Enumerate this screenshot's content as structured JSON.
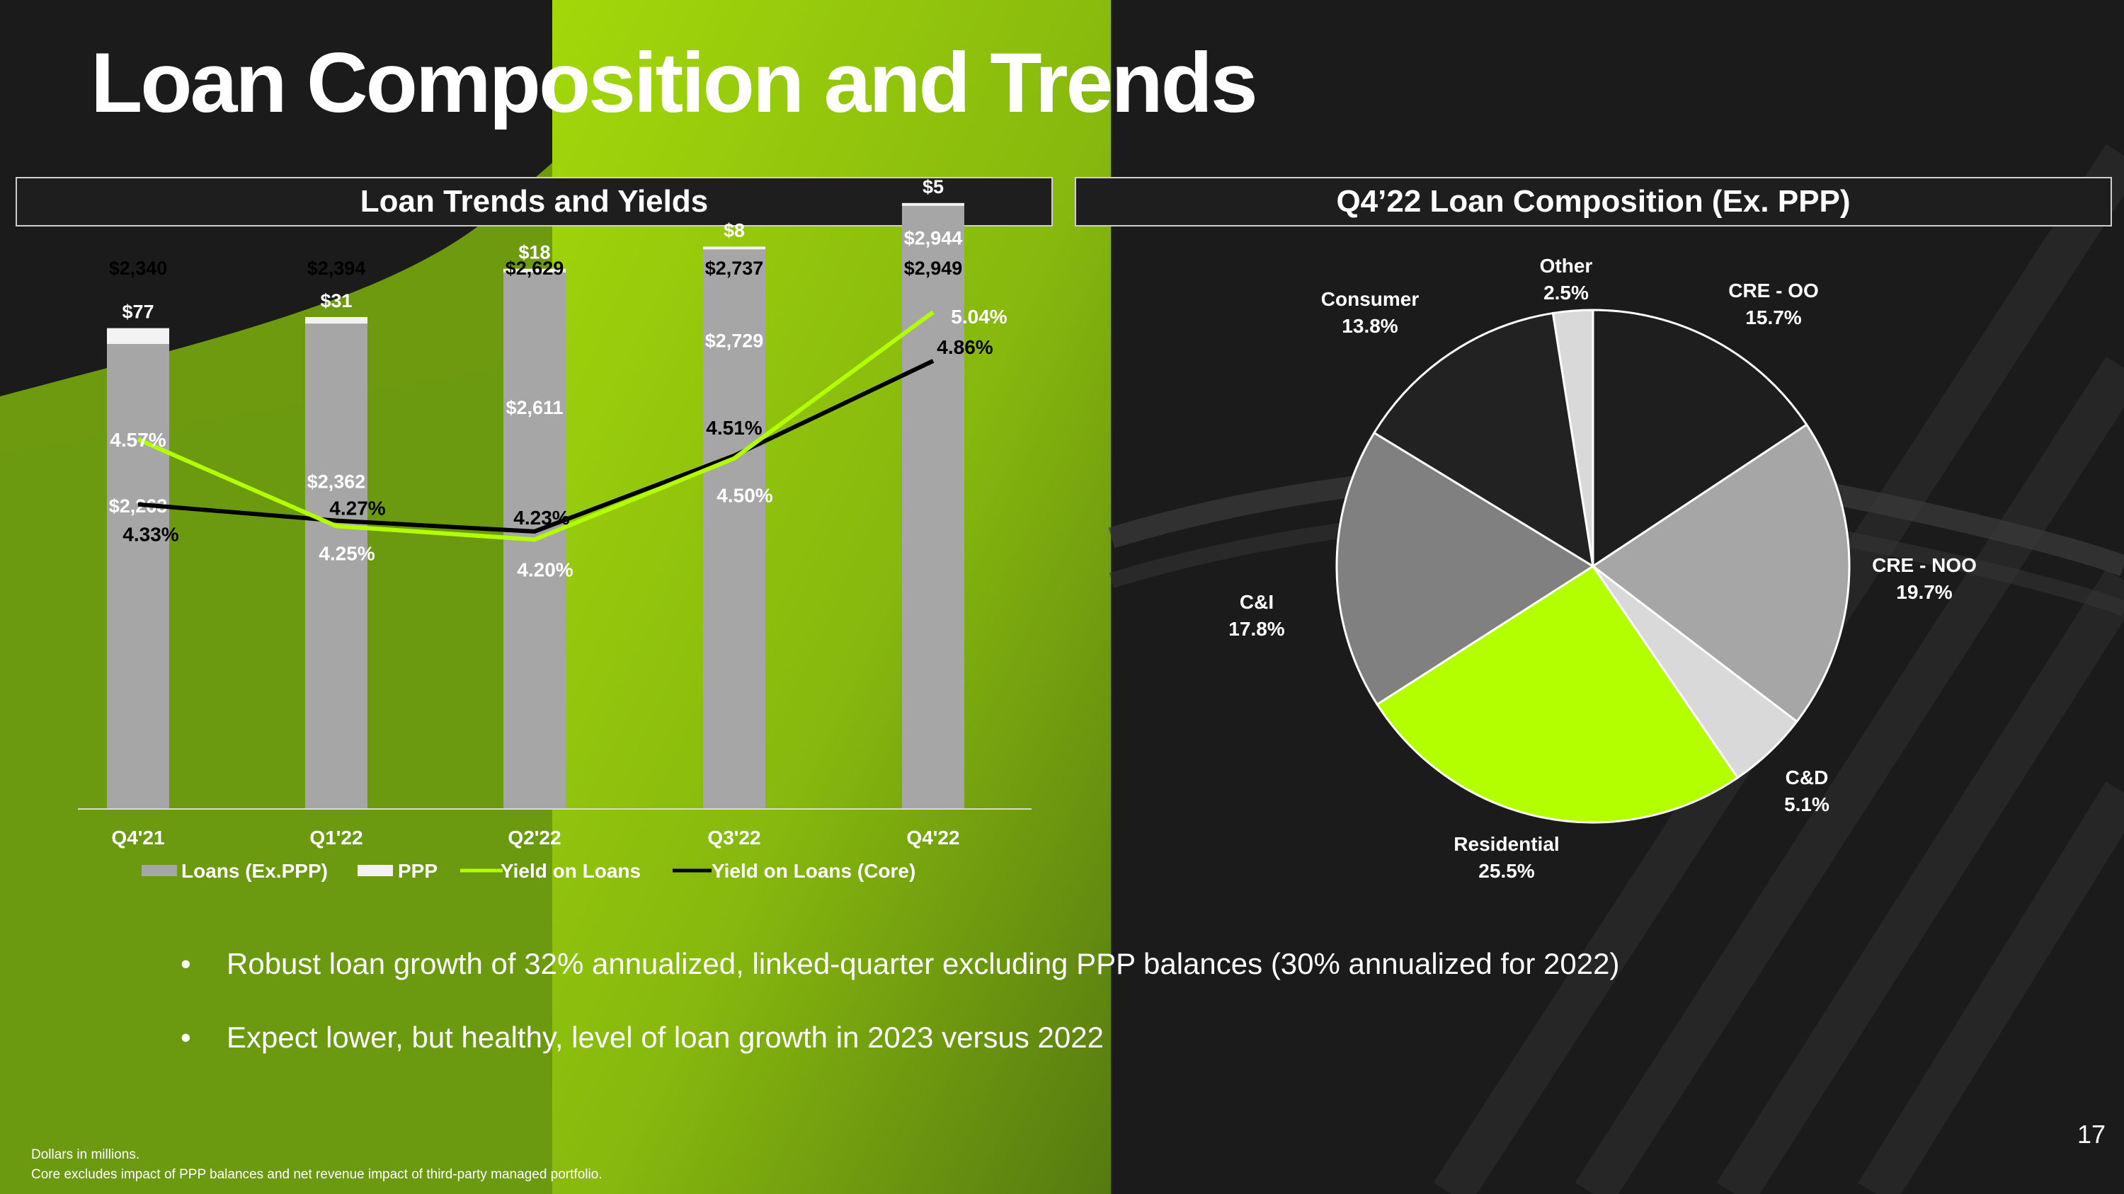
{
  "slide": {
    "title": "Loan Composition and Trends",
    "page_number": "17"
  },
  "left_panel": {
    "header": "Loan Trends and Yields"
  },
  "right_panel": {
    "header": "Q4’22 Loan Composition (Ex. PPP)"
  },
  "bullets": [
    "Robust loan growth of 32% annualized, linked-quarter excluding PPP balances (30% annualized for 2022)",
    "Expect lower, but healthy, level of loan growth in 2023 versus 2022"
  ],
  "bullet_marker": "•",
  "footnotes": [
    "Dollars in millions.",
    "Core excludes impact of PPP balances and net revenue impact of third-party managed portfolio."
  ],
  "colors": {
    "accent_green": "#b3ff00",
    "loans_bar": "#a6a6a6",
    "ppp_bar": "#f2f2f2",
    "core_line": "#000000"
  },
  "chart_data": [
    {
      "type": "bar",
      "title": "Loan Trends and Yields",
      "categories": [
        "Q4'21",
        "Q1'22",
        "Q2'22",
        "Q3'22",
        "Q4'22"
      ],
      "series": [
        {
          "name": "Loans (Ex.PPP)",
          "kind": "stacked-bar",
          "values": [
            2263,
            2362,
            2611,
            2729,
            2944
          ],
          "labels": [
            "$2,263",
            "$2,362",
            "$2,611",
            "$2,729",
            "$2,944"
          ]
        },
        {
          "name": "PPP",
          "kind": "stacked-bar",
          "values": [
            77,
            31,
            18,
            8,
            5
          ],
          "labels": [
            "$77",
            "$31",
            "$18",
            "$8",
            "$5"
          ]
        },
        {
          "name": "Yield on Loans",
          "kind": "line",
          "values": [
            4.57,
            4.25,
            4.2,
            4.5,
            5.04
          ],
          "labels": [
            "4.57%",
            "4.25%",
            "4.20%",
            "4.50%",
            "5.04%"
          ]
        },
        {
          "name": "Yield on Loans (Core)",
          "kind": "line",
          "values": [
            4.33,
            4.27,
            4.23,
            4.51,
            4.86
          ],
          "labels": [
            "4.33%",
            "4.27%",
            "4.23%",
            "4.51%",
            "4.86%"
          ]
        }
      ],
      "totals": [
        2340,
        2394,
        2629,
        2737,
        2949
      ],
      "total_labels": [
        "$2,340",
        "$2,394",
        "$2,629",
        "$2,737",
        "$2,949"
      ],
      "bar_ylim": [
        0,
        3100
      ],
      "yield_ylim": [
        3.2,
        5.5
      ],
      "legend": "bottom"
    },
    {
      "type": "pie",
      "title": "Q4’22 Loan Composition (Ex. PPP)",
      "slices": [
        {
          "label": "CRE - OO",
          "value": 15.7,
          "pct": "15.7%",
          "color": "#1e1e1e"
        },
        {
          "label": "CRE - NOO",
          "value": 19.7,
          "pct": "19.7%",
          "color": "#a6a6a6"
        },
        {
          "label": "C&D",
          "value": 5.1,
          "pct": "5.1%",
          "color": "#d9d9d9"
        },
        {
          "label": "Residential",
          "value": 25.5,
          "pct": "25.5%",
          "color": "#b3ff00"
        },
        {
          "label": "C&I",
          "value": 17.8,
          "pct": "17.8%",
          "color": "#808080"
        },
        {
          "label": "Consumer",
          "value": 13.8,
          "pct": "13.8%",
          "color": "#222222"
        },
        {
          "label": "Other",
          "value": 2.5,
          "pct": "2.5%",
          "color": "#d9d9d9"
        }
      ],
      "start": "12 o'clock",
      "direction": "clockwise"
    }
  ]
}
